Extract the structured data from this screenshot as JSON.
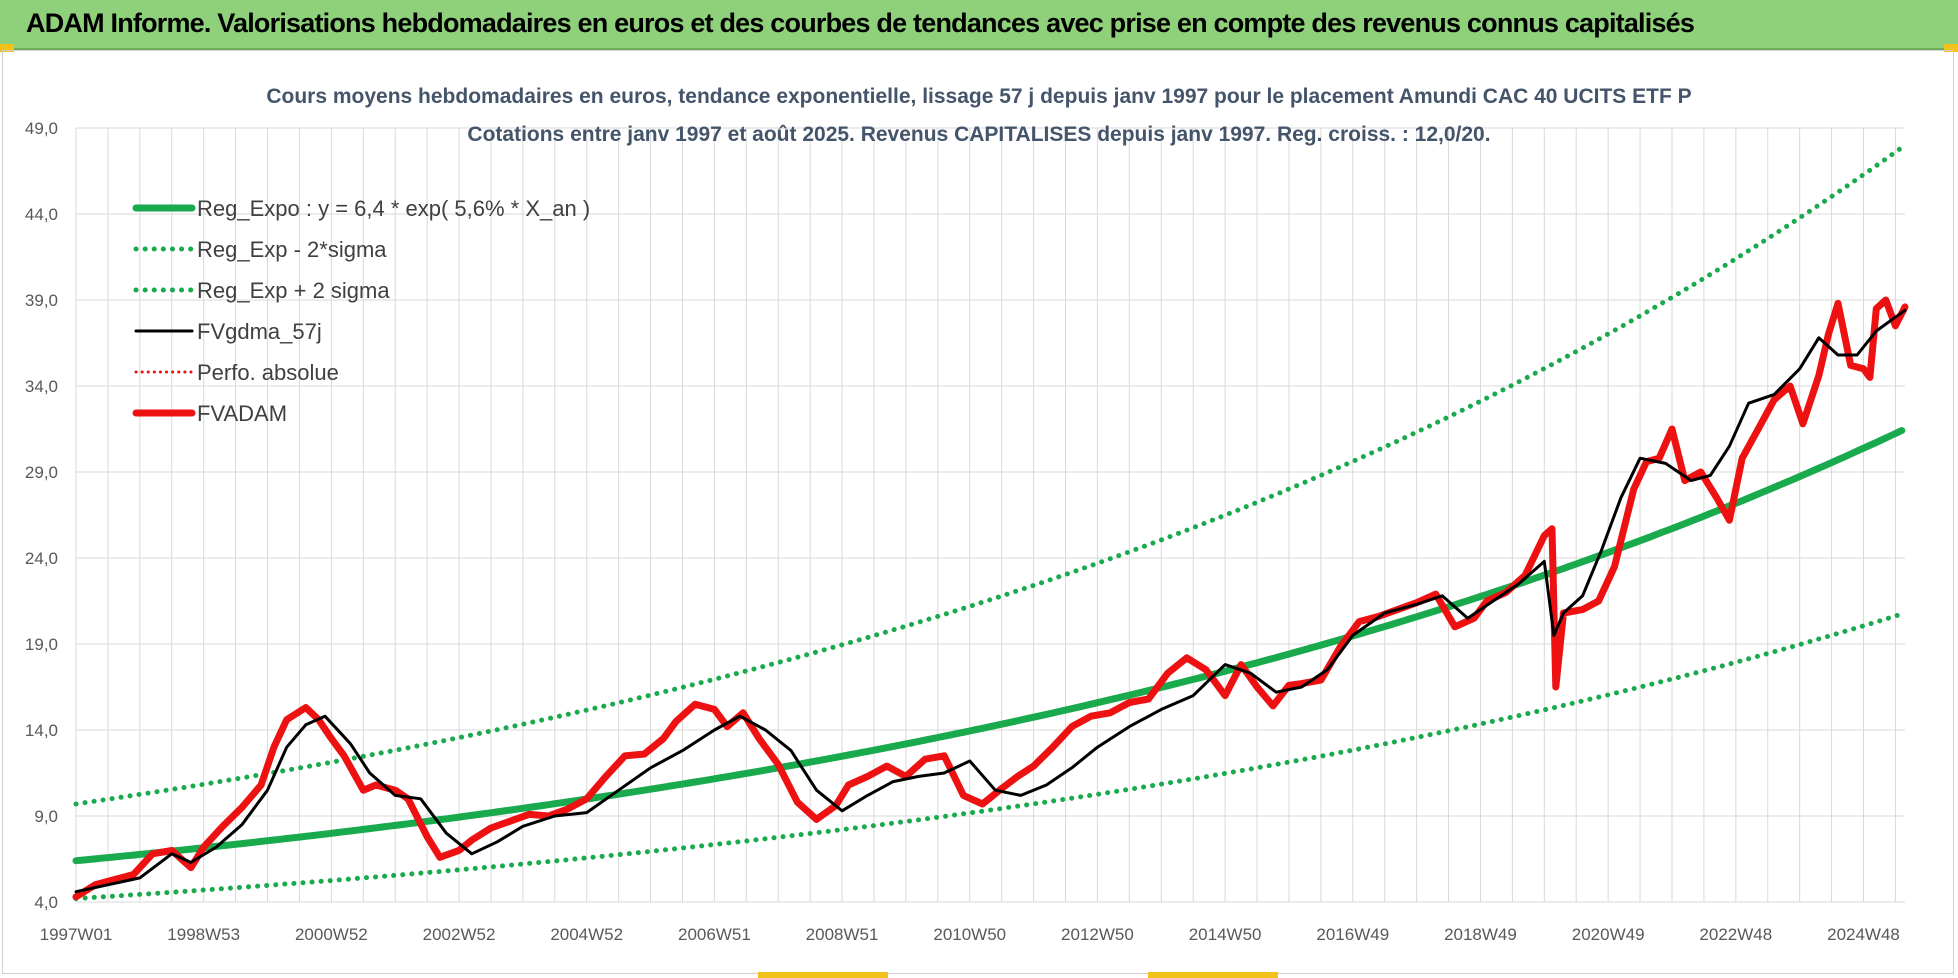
{
  "header": {
    "title": "ADAM Informe. Valorisations hebdomadaires en euros et des courbes de tendances avec prise en compte des revenus connus capitalisés"
  },
  "colors": {
    "banner": "#8fd07a",
    "grid": "#d9d9d9",
    "trend": "#1aaa4e",
    "fv": "#000000",
    "adam": "#ee1111",
    "title_text": "#44546a"
  },
  "chart_data": {
    "type": "line",
    "title": "Cours moyens hebdomadaires en euros, tendance exponentielle, lissage 57 j depuis janv 1997 pour le placement Amundi CAC 40 UCITS ETF P",
    "subtitle": "Cotations entre janv 1997 et août 2025. Revenus CAPITALISES depuis janv 1997. Reg. croiss. : 12,0/20.",
    "x_tick_labels": [
      "1997W01",
      "1998W53",
      "2000W52",
      "2002W52",
      "2004W52",
      "2006W51",
      "2008W51",
      "2010W50",
      "2012W50",
      "2014W50",
      "2016W49",
      "2018W49",
      "2020W49",
      "2022W48",
      "2024W48"
    ],
    "x_tick_years": [
      1997.0,
      1999.0,
      2001.0,
      2003.0,
      2005.0,
      2007.0,
      2009.0,
      2011.0,
      2013.0,
      2015.0,
      2017.0,
      2019.0,
      2021.0,
      2023.0,
      2025.0
    ],
    "x_range": [
      1997.0,
      2025.65
    ],
    "y_ticks": [
      "4,0",
      "9,0",
      "14,0",
      "19,0",
      "24,0",
      "29,0",
      "34,0",
      "39,0",
      "44,0",
      "49,0"
    ],
    "ylim": [
      4,
      49
    ],
    "grid": true,
    "legend_position": "top-left",
    "legend": [
      {
        "label": "Reg_Expo : y = 6,4 * exp( 5,6% *  X_an )",
        "style": "solid-thick",
        "color": "#1aaa4e"
      },
      {
        "label": "Reg_Exp - 2*sigma",
        "style": "dotted",
        "color": "#1aaa4e"
      },
      {
        "label": "Reg_Exp + 2 sigma",
        "style": "dotted",
        "color": "#1aaa4e"
      },
      {
        "label": "FVgdma_57j",
        "style": "solid",
        "color": "#000000"
      },
      {
        "label": "Perfo. absolue",
        "style": "dotted-thin",
        "color": "#ee1111"
      },
      {
        "label": "FVADAM",
        "style": "solid-thick",
        "color": "#ee1111"
      }
    ],
    "series": [
      {
        "name": "Reg_Expo : y = 6,4 * exp( 5,6% *  X_an )",
        "x": [
          1997.0,
          2001.0,
          2005.0,
          2009.0,
          2013.0,
          2017.0,
          2021.0,
          2025.65
        ],
        "values": [
          6.4,
          8.0,
          10.0,
          12.5,
          15.6,
          19.6,
          24.5,
          31.5
        ]
      },
      {
        "name": "Reg_Exp - 2*sigma",
        "x": [
          1997.0,
          2001.0,
          2005.0,
          2009.0,
          2013.0,
          2017.0,
          2021.0,
          2025.65
        ],
        "values": [
          4.2,
          5.3,
          6.6,
          8.3,
          10.4,
          13.0,
          16.2,
          20.8
        ]
      },
      {
        "name": "Reg_Exp + 2 sigma",
        "x": [
          1997.0,
          2001.0,
          2005.0,
          2009.0,
          2013.0,
          2017.0,
          2021.0,
          2025.65
        ],
        "values": [
          9.7,
          12.1,
          15.1,
          19.0,
          23.8,
          29.8,
          37.3,
          48.0
        ]
      },
      {
        "name": "FVgdma_57j",
        "x": [
          1997.0,
          1997.5,
          1998.0,
          1998.5,
          1998.8,
          1999.2,
          1999.6,
          2000.0,
          2000.3,
          2000.6,
          2000.9,
          2001.3,
          2001.6,
          2002.0,
          2002.4,
          2002.8,
          2003.2,
          2003.6,
          2004.0,
          2004.5,
          2005.0,
          2005.5,
          2006.0,
          2006.5,
          2007.0,
          2007.4,
          2007.8,
          2008.2,
          2008.6,
          2009.0,
          2009.4,
          2009.8,
          2010.2,
          2010.6,
          2011.0,
          2011.4,
          2011.8,
          2012.2,
          2012.6,
          2013.0,
          2013.5,
          2014.0,
          2014.5,
          2015.0,
          2015.4,
          2015.8,
          2016.2,
          2016.6,
          2017.0,
          2017.5,
          2018.0,
          2018.4,
          2018.8,
          2019.2,
          2019.6,
          2020.0,
          2020.15,
          2020.3,
          2020.6,
          2020.9,
          2021.2,
          2021.5,
          2021.9,
          2022.3,
          2022.6,
          2022.9,
          2023.2,
          2023.6,
          2024.0,
          2024.3,
          2024.6,
          2024.9,
          2025.2,
          2025.5,
          2025.65
        ],
        "values": [
          4.6,
          5.0,
          5.4,
          6.8,
          6.3,
          7.2,
          8.5,
          10.5,
          13.0,
          14.3,
          14.8,
          13.2,
          11.5,
          10.2,
          10.0,
          8.0,
          6.8,
          7.5,
          8.4,
          9.0,
          9.2,
          10.5,
          11.8,
          12.8,
          14.0,
          14.8,
          14.0,
          12.8,
          10.5,
          9.3,
          10.2,
          11.0,
          11.3,
          11.5,
          12.2,
          10.5,
          10.2,
          10.8,
          11.8,
          13.0,
          14.2,
          15.2,
          16.0,
          17.8,
          17.3,
          16.2,
          16.5,
          17.5,
          19.5,
          20.8,
          21.3,
          21.8,
          20.5,
          21.5,
          22.5,
          23.8,
          19.5,
          20.8,
          21.8,
          24.5,
          27.5,
          29.8,
          29.5,
          28.5,
          28.8,
          30.5,
          33.0,
          33.5,
          35.0,
          36.8,
          35.8,
          35.8,
          37.2,
          38.0,
          38.4
        ]
      },
      {
        "name": "FVADAM",
        "x": [
          1997.0,
          1997.3,
          1997.6,
          1997.9,
          1998.2,
          1998.5,
          1998.8,
          1999.0,
          1999.3,
          1999.6,
          1999.9,
          2000.1,
          2000.3,
          2000.6,
          2000.8,
          2001.0,
          2001.2,
          2001.5,
          2001.7,
          2002.0,
          2002.2,
          2002.5,
          2002.7,
          2003.0,
          2003.2,
          2003.5,
          2003.8,
          2004.1,
          2004.4,
          2004.7,
          2005.0,
          2005.3,
          2005.6,
          2005.9,
          2006.2,
          2006.4,
          2006.7,
          2007.0,
          2007.2,
          2007.45,
          2007.7,
          2008.0,
          2008.3,
          2008.6,
          2008.9,
          2009.1,
          2009.4,
          2009.7,
          2010.0,
          2010.3,
          2010.6,
          2010.9,
          2011.2,
          2011.5,
          2011.75,
          2012.0,
          2012.3,
          2012.6,
          2012.9,
          2013.2,
          2013.5,
          2013.8,
          2014.1,
          2014.4,
          2014.7,
          2015.0,
          2015.25,
          2015.5,
          2015.75,
          2016.0,
          2016.2,
          2016.5,
          2016.8,
          2017.1,
          2017.4,
          2017.7,
          2018.0,
          2018.3,
          2018.6,
          2018.9,
          2019.1,
          2019.4,
          2019.7,
          2020.0,
          2020.12,
          2020.18,
          2020.3,
          2020.6,
          2020.85,
          2021.1,
          2021.4,
          2021.6,
          2021.8,
          2022.0,
          2022.2,
          2022.45,
          2022.7,
          2022.9,
          2023.1,
          2023.35,
          2023.6,
          2023.85,
          2024.05,
          2024.3,
          2024.45,
          2024.6,
          2024.8,
          2025.0,
          2025.1,
          2025.2,
          2025.35,
          2025.5,
          2025.65
        ],
        "values": [
          4.3,
          5.0,
          5.3,
          5.6,
          6.8,
          7.0,
          6.0,
          7.2,
          8.4,
          9.5,
          10.8,
          13.0,
          14.6,
          15.3,
          14.6,
          13.5,
          12.5,
          10.5,
          10.8,
          10.5,
          10.0,
          7.8,
          6.6,
          7.0,
          7.6,
          8.3,
          8.7,
          9.1,
          9.0,
          9.4,
          10.0,
          11.3,
          12.5,
          12.6,
          13.5,
          14.5,
          15.5,
          15.2,
          14.2,
          15.0,
          13.5,
          12.0,
          9.8,
          8.8,
          9.6,
          10.8,
          11.3,
          11.9,
          11.3,
          12.3,
          12.5,
          10.2,
          9.7,
          10.6,
          11.3,
          11.9,
          13.0,
          14.2,
          14.8,
          15.0,
          15.6,
          15.8,
          17.3,
          18.2,
          17.5,
          16.0,
          17.8,
          16.5,
          15.4,
          16.6,
          16.7,
          16.9,
          18.8,
          20.3,
          20.6,
          21.0,
          21.4,
          21.9,
          20.0,
          20.5,
          21.5,
          22.0,
          23.0,
          25.3,
          25.7,
          16.5,
          20.8,
          21.0,
          21.5,
          23.5,
          28.0,
          29.6,
          29.8,
          31.5,
          28.5,
          29.0,
          27.5,
          26.2,
          29.8,
          31.5,
          33.2,
          34.0,
          31.8,
          34.6,
          37.0,
          38.8,
          35.2,
          35.0,
          34.5,
          38.5,
          39.0,
          37.5,
          38.6
        ]
      }
    ]
  }
}
